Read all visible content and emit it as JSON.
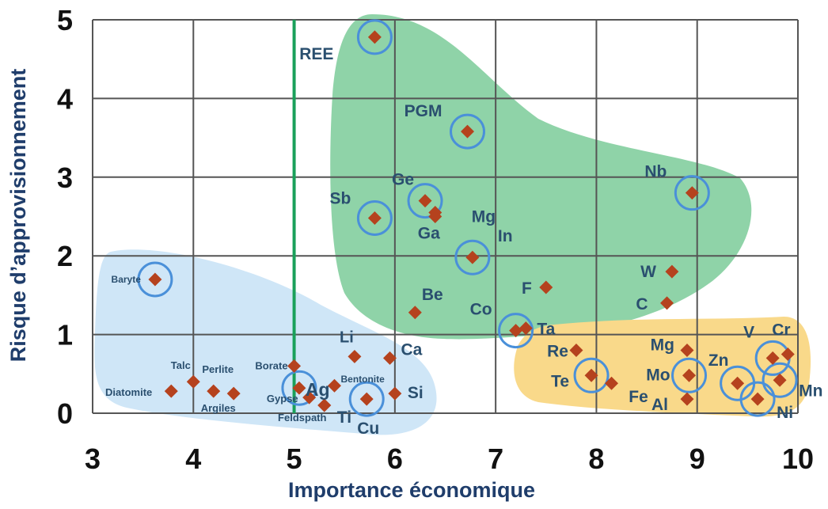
{
  "chart_data": {
    "type": "scatter",
    "title": "",
    "xlabel": "Importance économique",
    "ylabel": "Risque d’approvisionnement",
    "xlim": [
      3,
      10
    ],
    "ylim": [
      0,
      5
    ],
    "xticks": [
      "3",
      "4",
      "5",
      "6",
      "7",
      "8",
      "9",
      "10"
    ],
    "yticks": [
      "0",
      "1",
      "2",
      "3",
      "4",
      "5"
    ],
    "grid": true,
    "threshold_x": 5,
    "colors": {
      "marker": "#b5421e",
      "circle": "#4a90d9",
      "threshold_line": "#1aa05a",
      "region_blue": "#cfe6f7",
      "region_green": "#8fd3a8",
      "region_orange": "#f9d98a"
    },
    "points": [
      {
        "label": "REE",
        "x": 5.8,
        "y": 4.78,
        "circled": true
      },
      {
        "label": "PGM",
        "x": 6.72,
        "y": 3.58,
        "circled": true
      },
      {
        "label": "Ge",
        "x": 6.3,
        "y": 2.7,
        "circled": true
      },
      {
        "label": "Mg",
        "x": 6.4,
        "y": 2.55,
        "circled": false
      },
      {
        "label": "Ga",
        "x": 6.4,
        "y": 2.5,
        "circled": false
      },
      {
        "label": "Sb",
        "x": 5.8,
        "y": 2.48,
        "circled": true
      },
      {
        "label": "Nb",
        "x": 8.95,
        "y": 2.8,
        "circled": true
      },
      {
        "label": "In",
        "x": 6.77,
        "y": 1.98,
        "circled": true
      },
      {
        "label": "W",
        "x": 8.75,
        "y": 1.8,
        "circled": false
      },
      {
        "label": "F",
        "x": 7.5,
        "y": 1.6,
        "circled": false
      },
      {
        "label": "C",
        "x": 8.7,
        "y": 1.4,
        "circled": false
      },
      {
        "label": "Be",
        "x": 6.2,
        "y": 1.28,
        "circled": false
      },
      {
        "label": "Co",
        "x": 7.2,
        "y": 1.05,
        "circled": true
      },
      {
        "label": "Ta",
        "x": 7.3,
        "y": 1.08,
        "circled": false
      },
      {
        "label": "Baryte",
        "x": 3.62,
        "y": 1.7,
        "circled": true
      },
      {
        "label": "Li",
        "x": 5.6,
        "y": 0.72,
        "circled": false
      },
      {
        "label": "Ca",
        "x": 5.95,
        "y": 0.7,
        "circled": false
      },
      {
        "label": "Borate",
        "x": 5.0,
        "y": 0.6,
        "circled": false
      },
      {
        "label": "Ag",
        "x": 5.05,
        "y": 0.32,
        "circled": true
      },
      {
        "label": "Gypse",
        "x": 5.15,
        "y": 0.2,
        "circled": false
      },
      {
        "label": "Bentonite",
        "x": 5.4,
        "y": 0.35,
        "circled": false
      },
      {
        "label": "Feldspath",
        "x": 5.3,
        "y": 0.1,
        "circled": false
      },
      {
        "label": "Ti",
        "x": 5.3,
        "y": 0.1,
        "circled": false
      },
      {
        "label": "Cu",
        "x": 5.72,
        "y": 0.18,
        "circled": true
      },
      {
        "label": "Si",
        "x": 6.0,
        "y": 0.25,
        "circled": false
      },
      {
        "label": "Talc",
        "x": 4.0,
        "y": 0.4,
        "circled": false
      },
      {
        "label": "Perlite",
        "x": 4.4,
        "y": 0.25,
        "circled": false
      },
      {
        "label": "Diatomite",
        "x": 3.78,
        "y": 0.28,
        "circled": false
      },
      {
        "label": "Argiles",
        "x": 4.2,
        "y": 0.28,
        "circled": false
      },
      {
        "label": "Re",
        "x": 7.8,
        "y": 0.8,
        "circled": false
      },
      {
        "label": "Te",
        "x": 7.95,
        "y": 0.48,
        "circled": true
      },
      {
        "label": "Fe",
        "x": 8.15,
        "y": 0.38,
        "circled": false
      },
      {
        "label": "Mg",
        "x": 8.9,
        "y": 0.8,
        "circled": false
      },
      {
        "label": "Mo",
        "x": 8.92,
        "y": 0.48,
        "circled": true
      },
      {
        "label": "Al",
        "x": 8.9,
        "y": 0.18,
        "circled": false
      },
      {
        "label": "Zn",
        "x": 9.4,
        "y": 0.38,
        "circled": true
      },
      {
        "label": "V",
        "x": 9.75,
        "y": 0.7,
        "circled": true
      },
      {
        "label": "Cr",
        "x": 9.9,
        "y": 0.75,
        "circled": false
      },
      {
        "label": "Mn",
        "x": 9.82,
        "y": 0.42,
        "circled": true
      },
      {
        "label": "Ni",
        "x": 9.6,
        "y": 0.18,
        "circled": true
      }
    ]
  }
}
